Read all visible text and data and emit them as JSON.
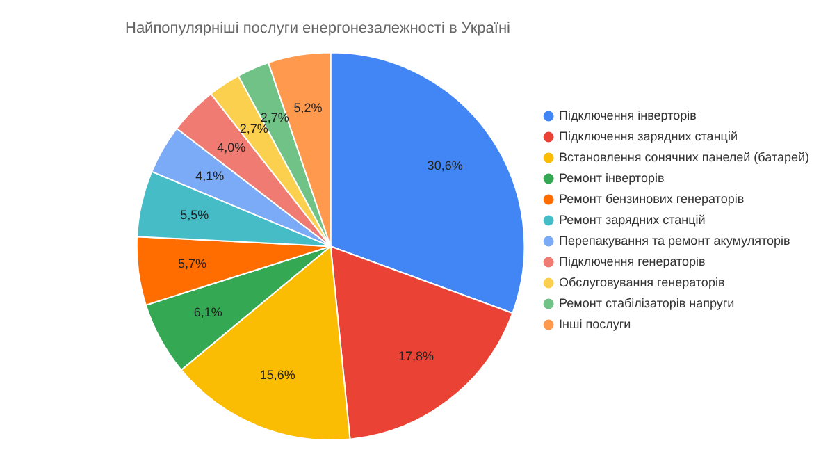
{
  "chart_data": {
    "type": "pie",
    "title": "Найпопулярніші послуги енергонезалежності в Україні",
    "categories": [
      "Підключення інверторів",
      "Підключення зарядних станцій",
      "Встановлення сонячних панелей (батарей)",
      "Ремонт інверторів",
      "Ремонт бензинових генераторів",
      "Ремонт зарядних станцій",
      "Перепакування та ремонт акумуляторів",
      "Підключення генераторів",
      "Обслуговування генераторів",
      "Ремонт стабілізаторів напруги",
      "Інші послуги"
    ],
    "values": [
      30.6,
      17.8,
      15.6,
      6.1,
      5.7,
      5.5,
      4.1,
      4.0,
      2.7,
      2.7,
      5.2
    ],
    "value_labels": [
      "30,6%",
      "17,8%",
      "15,6%",
      "6,1%",
      "5,7%",
      "5,5%",
      "4,1%",
      "4,0%",
      "2,7%",
      "2,7%",
      "5,2%"
    ],
    "colors": [
      "#4285f4",
      "#ea4335",
      "#fbbc04",
      "#34a853",
      "#ff6d01",
      "#46bdc6",
      "#7baaf7",
      "#f07b72",
      "#fcd04f",
      "#71c287",
      "#ff994d"
    ],
    "legend": "right"
  }
}
